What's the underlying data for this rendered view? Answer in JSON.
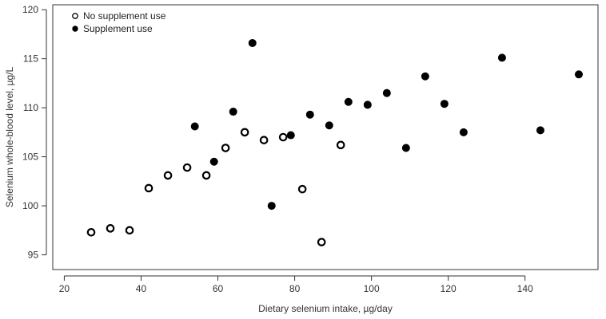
{
  "chart_data": {
    "type": "scatter",
    "title": "",
    "xlabel": "Dietary selenium intake, µg/day",
    "ylabel": "Selenium whole-blood level, µg/L",
    "xlim": [
      17,
      159
    ],
    "ylim": [
      93.5,
      120.5
    ],
    "xticks": [
      20,
      40,
      60,
      80,
      100,
      120,
      140
    ],
    "yticks": [
      95,
      100,
      105,
      110,
      115,
      120
    ],
    "grid": false,
    "legend": "top-left",
    "series": [
      {
        "name": "No supplement use",
        "marker": "open-circle",
        "color": "#000000",
        "points": [
          {
            "x": 27,
            "y": 97.3
          },
          {
            "x": 32,
            "y": 97.7
          },
          {
            "x": 37,
            "y": 97.5
          },
          {
            "x": 42,
            "y": 101.8
          },
          {
            "x": 47,
            "y": 103.1
          },
          {
            "x": 52,
            "y": 103.9
          },
          {
            "x": 57,
            "y": 103.1
          },
          {
            "x": 62,
            "y": 105.9
          },
          {
            "x": 67,
            "y": 107.5
          },
          {
            "x": 72,
            "y": 106.7
          },
          {
            "x": 77,
            "y": 107.0
          },
          {
            "x": 82,
            "y": 101.7
          },
          {
            "x": 87,
            "y": 96.3
          },
          {
            "x": 92,
            "y": 106.2
          }
        ]
      },
      {
        "name": "Supplement use",
        "marker": "filled-circle",
        "color": "#000000",
        "points": [
          {
            "x": 54,
            "y": 108.1
          },
          {
            "x": 59,
            "y": 104.5
          },
          {
            "x": 64,
            "y": 109.6
          },
          {
            "x": 69,
            "y": 116.6
          },
          {
            "x": 74,
            "y": 100.0
          },
          {
            "x": 79,
            "y": 107.2
          },
          {
            "x": 84,
            "y": 109.3
          },
          {
            "x": 89,
            "y": 108.2
          },
          {
            "x": 94,
            "y": 110.6
          },
          {
            "x": 99,
            "y": 110.3
          },
          {
            "x": 104,
            "y": 111.5
          },
          {
            "x": 109,
            "y": 105.9
          },
          {
            "x": 114,
            "y": 113.2
          },
          {
            "x": 119,
            "y": 110.4
          },
          {
            "x": 124,
            "y": 107.5
          },
          {
            "x": 134,
            "y": 115.1
          },
          {
            "x": 144,
            "y": 107.7
          },
          {
            "x": 154,
            "y": 113.4
          }
        ]
      }
    ]
  }
}
